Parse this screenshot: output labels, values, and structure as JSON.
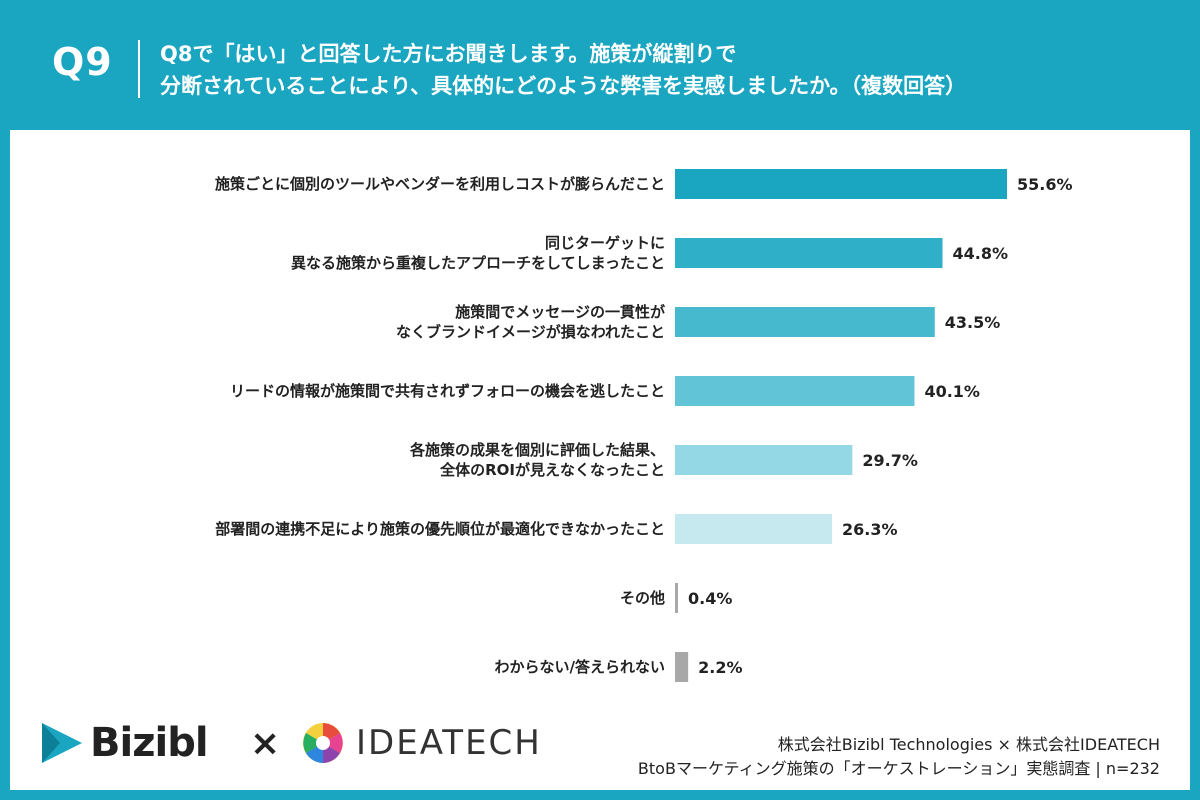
{
  "header": {
    "qnum": "Q9",
    "line1": "Q8で「はい」と回答した方にお聞きします。施策が縦割りで",
    "line2": "分断されていることにより、具体的にどのような弊害を実感しましたか。（複数回答）"
  },
  "chart_data": {
    "type": "bar",
    "orientation": "horizontal",
    "categories": [
      [
        "施策ごとに個別のツールやベンダーを利用しコストが膨らんだこと"
      ],
      [
        "同じターゲットに",
        "異なる施策から重複したアプローチをしてしまったこと"
      ],
      [
        "施策間でメッセージの一貫性が",
        "なくブランドイメージが損なわれたこと"
      ],
      [
        "リードの情報が施策間で共有されずフォローの機会を逃したこと"
      ],
      [
        "各施策の成果を個別に評価した結果、",
        "全体のROIが見えなくなったこと"
      ],
      [
        "部署間の連携不足により施策の優先順位が最適化できなかったこと"
      ],
      [
        "その他"
      ],
      [
        "わからない/答えられない"
      ]
    ],
    "values": [
      55.6,
      44.8,
      43.5,
      40.1,
      29.7,
      26.3,
      0.4,
      2.2
    ],
    "value_labels": [
      "55.6%",
      "44.8%",
      "43.5%",
      "40.1%",
      "29.7%",
      "26.3%",
      "0.4%",
      "2.2%"
    ],
    "colors": [
      "#1aa5c0",
      "#30b0c8",
      "#46b9cf",
      "#62c4d7",
      "#93d8e4",
      "#c6e9f0",
      "#a8a8a8",
      "#a8a8a8"
    ],
    "xlim": [
      0,
      55.6
    ],
    "grid": false
  },
  "footer": {
    "bizibl": "Bizibl",
    "times": "×",
    "ideatech": "IDEATECH",
    "credit_line1": "株式会社Bizibl Technologies × 株式会社IDEATECH",
    "credit_line2": "BtoBマーケティング施策の「オーケストレーション」実態調査 | n=232"
  }
}
